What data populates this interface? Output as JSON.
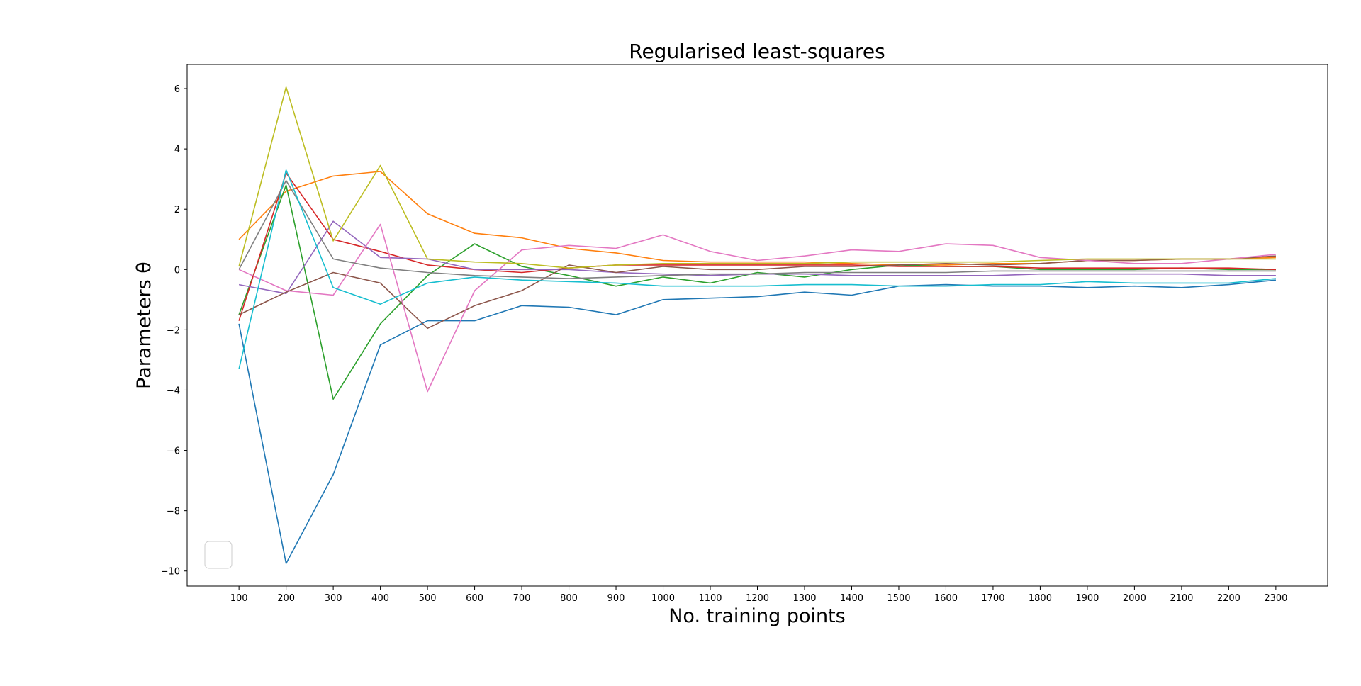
{
  "chart_data": {
    "type": "line",
    "title": "Regularised least-squares",
    "xlabel": "No. training points",
    "ylabel": "Parameters θ",
    "x": [
      100,
      200,
      300,
      400,
      500,
      600,
      700,
      800,
      900,
      1000,
      1100,
      1200,
      1300,
      1400,
      1500,
      1600,
      1700,
      1800,
      1900,
      2000,
      2100,
      2200,
      2300
    ],
    "xlim": [
      -10,
      2410
    ],
    "ylim": [
      -10.5,
      6.8
    ],
    "x_ticks": [
      100,
      200,
      300,
      400,
      500,
      600,
      700,
      800,
      900,
      1000,
      1100,
      1200,
      1300,
      1400,
      1500,
      1600,
      1700,
      1800,
      1900,
      2000,
      2100,
      2200,
      2300
    ],
    "y_ticks": [
      -10,
      -8,
      -6,
      -4,
      -2,
      0,
      2,
      4,
      6
    ],
    "y_tick_labels": [
      "−10",
      "−8",
      "−6",
      "−4",
      "−2",
      "0",
      "2",
      "4",
      "6"
    ],
    "grid": false,
    "legend": {
      "placement": "lower-left",
      "entries": []
    },
    "series": [
      {
        "color": "#1f77b4",
        "values": [
          -1.8,
          -9.75,
          -6.8,
          -2.5,
          -1.7,
          -1.7,
          -1.2,
          -1.25,
          -1.5,
          -1.0,
          -0.95,
          -0.9,
          -0.75,
          -0.85,
          -0.55,
          -0.5,
          -0.55,
          -0.55,
          -0.6,
          -0.55,
          -0.6,
          -0.5,
          -0.35
        ]
      },
      {
        "color": "#ff7f0e",
        "values": [
          1.0,
          2.6,
          3.1,
          3.25,
          1.85,
          1.2,
          1.05,
          0.7,
          0.55,
          0.3,
          0.25,
          0.25,
          0.25,
          0.2,
          0.15,
          0.15,
          0.2,
          0.2,
          0.3,
          0.3,
          0.35,
          0.35,
          0.4
        ]
      },
      {
        "color": "#2ca02c",
        "values": [
          -1.5,
          2.8,
          -4.3,
          -1.8,
          -0.2,
          0.85,
          0.1,
          -0.2,
          -0.55,
          -0.25,
          -0.45,
          -0.1,
          -0.25,
          0.0,
          0.15,
          0.1,
          0.1,
          0.0,
          0.0,
          0.0,
          0.05,
          0.0,
          0.0
        ]
      },
      {
        "color": "#d62728",
        "values": [
          -1.7,
          3.2,
          1.0,
          0.6,
          0.15,
          0.0,
          -0.1,
          0.05,
          0.15,
          0.15,
          0.15,
          0.15,
          0.15,
          0.15,
          0.1,
          0.1,
          0.1,
          0.05,
          0.05,
          0.05,
          0.05,
          0.05,
          0.0
        ]
      },
      {
        "color": "#9467bd",
        "values": [
          -0.5,
          -0.8,
          1.6,
          0.4,
          0.35,
          0.0,
          0.0,
          0.0,
          -0.1,
          -0.15,
          -0.2,
          -0.15,
          -0.15,
          -0.2,
          -0.2,
          -0.2,
          -0.2,
          -0.15,
          -0.15,
          -0.15,
          -0.15,
          -0.2,
          -0.2
        ]
      },
      {
        "color": "#8c564b",
        "values": [
          -1.5,
          -0.75,
          -0.1,
          -0.45,
          -1.95,
          -1.2,
          -0.7,
          0.15,
          -0.1,
          0.1,
          0.0,
          0.0,
          0.1,
          0.1,
          0.15,
          0.2,
          0.15,
          0.2,
          0.3,
          0.3,
          0.35,
          0.35,
          0.45
        ]
      },
      {
        "color": "#e377c2",
        "values": [
          0.0,
          -0.7,
          -0.85,
          1.5,
          -4.05,
          -0.7,
          0.65,
          0.8,
          0.7,
          1.15,
          0.6,
          0.3,
          0.45,
          0.65,
          0.6,
          0.85,
          0.8,
          0.4,
          0.3,
          0.2,
          0.2,
          0.35,
          0.5
        ]
      },
      {
        "color": "#7f7f7f",
        "values": [
          0.0,
          2.95,
          0.35,
          0.05,
          -0.1,
          -0.2,
          -0.25,
          -0.3,
          -0.25,
          -0.2,
          -0.15,
          -0.15,
          -0.1,
          -0.1,
          -0.1,
          -0.1,
          -0.05,
          -0.05,
          -0.05,
          -0.05,
          -0.05,
          -0.05,
          -0.05
        ]
      },
      {
        "color": "#bcbd22",
        "values": [
          0.1,
          6.05,
          0.95,
          3.45,
          0.35,
          0.25,
          0.2,
          0.05,
          0.15,
          0.2,
          0.2,
          0.2,
          0.2,
          0.25,
          0.25,
          0.25,
          0.25,
          0.3,
          0.35,
          0.35,
          0.35,
          0.35,
          0.35
        ]
      },
      {
        "color": "#17becf",
        "values": [
          -3.3,
          3.3,
          -0.6,
          -1.15,
          -0.45,
          -0.25,
          -0.35,
          -0.4,
          -0.45,
          -0.55,
          -0.55,
          -0.55,
          -0.5,
          -0.5,
          -0.55,
          -0.55,
          -0.5,
          -0.5,
          -0.4,
          -0.45,
          -0.45,
          -0.45,
          -0.3
        ]
      }
    ]
  }
}
